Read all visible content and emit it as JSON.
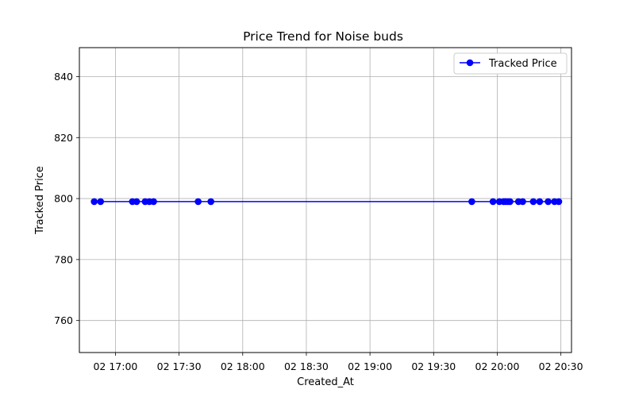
{
  "chart_data": {
    "type": "line",
    "title": "Price Trend for Noise buds",
    "xlabel": "Created_At",
    "ylabel": "Tracked Price",
    "xlim": [
      "02 16:43",
      "02 20:35"
    ],
    "ylim": [
      749.5,
      849.5
    ],
    "x_ticks": [
      "02 17:00",
      "02 17:30",
      "02 18:00",
      "02 18:30",
      "02 19:00",
      "02 19:30",
      "02 20:00",
      "02 20:30"
    ],
    "y_ticks": [
      760,
      780,
      800,
      820,
      840
    ],
    "grid": true,
    "legend": {
      "placement": "top-right",
      "entries": [
        "Tracked Price"
      ]
    },
    "series": [
      {
        "name": "Tracked Price",
        "color": "#0000ff",
        "marker": "circle",
        "x": [
          "02 16:50",
          "02 16:53",
          "02 17:08",
          "02 17:10",
          "02 17:14",
          "02 17:16",
          "02 17:18",
          "02 17:39",
          "02 17:45",
          "02 19:48",
          "02 19:58",
          "02 20:01",
          "02 20:03",
          "02 20:04",
          "02 20:05",
          "02 20:06",
          "02 20:10",
          "02 20:12",
          "02 20:17",
          "02 20:20",
          "02 20:24",
          "02 20:27",
          "02 20:29"
        ],
        "y": [
          799,
          799,
          799,
          799,
          799,
          799,
          799,
          799,
          799,
          799,
          799,
          799,
          799,
          799,
          799,
          799,
          799,
          799,
          799,
          799,
          799,
          799,
          799
        ]
      }
    ]
  }
}
